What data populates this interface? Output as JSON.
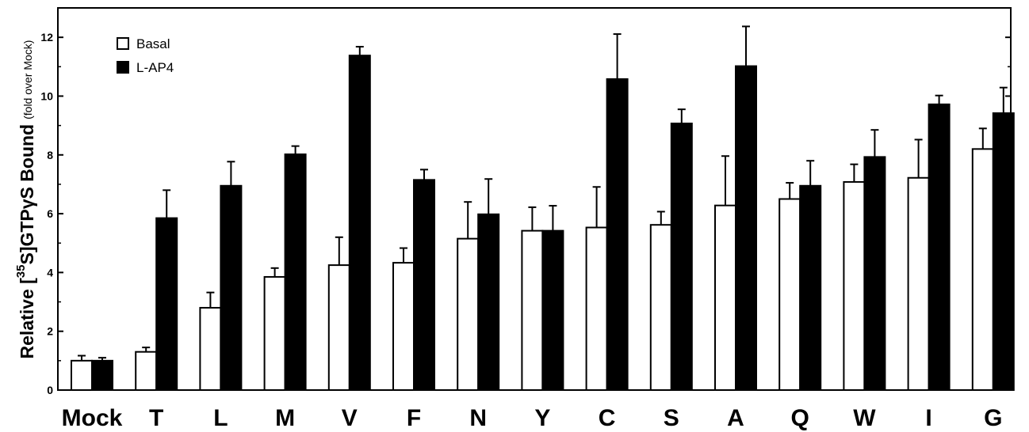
{
  "chart_data": {
    "type": "bar",
    "categories": [
      "Mock",
      "T",
      "L",
      "M",
      "V",
      "F",
      "N",
      "Y",
      "C",
      "S",
      "A",
      "Q",
      "W",
      "I",
      "G"
    ],
    "series": [
      {
        "name": "Basal",
        "color": "#ffffff",
        "values": [
          1.0,
          1.3,
          2.8,
          3.85,
          4.25,
          4.33,
          5.15,
          5.42,
          5.53,
          5.62,
          6.28,
          6.5,
          7.08,
          7.22,
          8.2
        ],
        "errors": [
          0.17,
          0.15,
          0.52,
          0.3,
          0.95,
          0.5,
          1.25,
          0.8,
          1.38,
          0.45,
          1.68,
          0.55,
          0.6,
          1.3,
          0.7
        ]
      },
      {
        "name": "L-AP4",
        "color": "#000000",
        "values": [
          1.0,
          5.85,
          6.95,
          8.02,
          11.38,
          7.15,
          5.98,
          5.42,
          10.58,
          9.07,
          11.02,
          6.95,
          7.93,
          9.72,
          9.42
        ],
        "errors": [
          0.1,
          0.95,
          0.82,
          0.28,
          0.3,
          0.35,
          1.2,
          0.85,
          1.53,
          0.48,
          1.35,
          0.85,
          0.92,
          0.3,
          0.87
        ]
      }
    ],
    "ylabel": {
      "prefix": "Relative [",
      "superscript": "35",
      "middle": "S]GTP",
      "greek": "γ",
      "suffix": "S Bound",
      "note": "(fold over Mock)"
    },
    "xlabel": "",
    "title": "",
    "ylim": [
      0,
      13
    ],
    "yticks": [
      0,
      2,
      4,
      6,
      8,
      10,
      12
    ],
    "legend_position": "top-left",
    "grid": false
  }
}
